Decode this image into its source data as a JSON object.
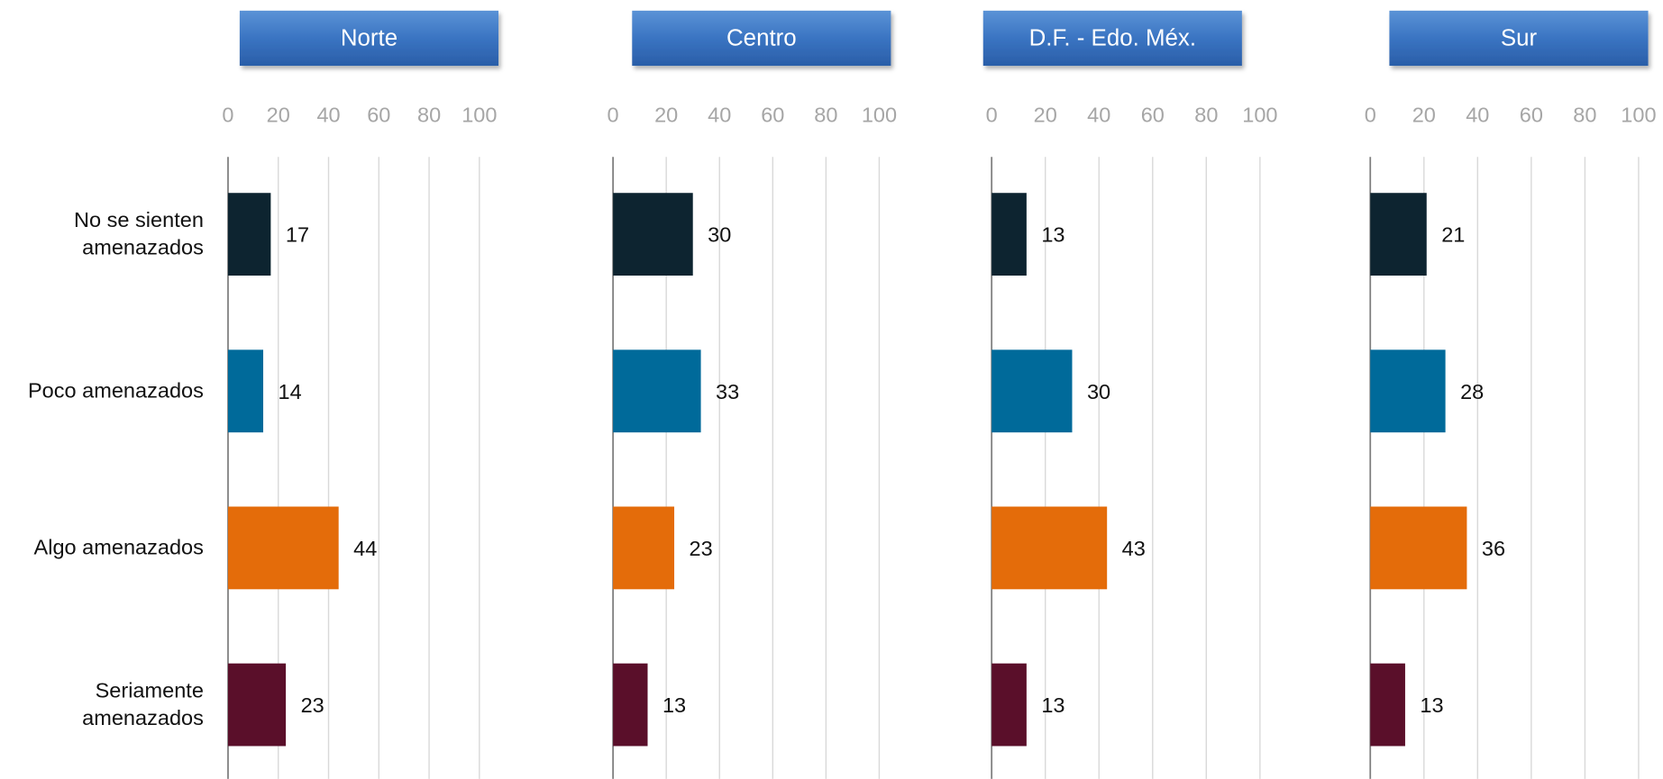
{
  "chart_data": [
    {
      "type": "bar",
      "title": "Norte",
      "categories": [
        "No se sienten amenazados",
        "Poco amenazados",
        "Algo amenazados",
        "Seriamente amenazados"
      ],
      "values": [
        17,
        14,
        44,
        23
      ],
      "colors": [
        "#0d2430",
        "#006a9a",
        "#e46c0a",
        "#5a0f2a"
      ],
      "xlim": [
        0,
        100
      ],
      "xticks": [
        0,
        20,
        40,
        60,
        80,
        100
      ],
      "grid": true
    },
    {
      "type": "bar",
      "title": "Centro",
      "values": [
        30,
        33,
        23,
        13
      ],
      "colors": [
        "#0d2430",
        "#006a9a",
        "#e46c0a",
        "#5a0f2a"
      ],
      "xlim": [
        0,
        100
      ],
      "xticks": [
        0,
        20,
        40,
        60,
        80,
        100
      ],
      "grid": true
    },
    {
      "type": "bar",
      "title": "D.F. - Edo. Méx.",
      "values": [
        13,
        30,
        43,
        13
      ],
      "colors": [
        "#0d2430",
        "#006a9a",
        "#e46c0a",
        "#5a0f2a"
      ],
      "xlim": [
        0,
        100
      ],
      "xticks": [
        0,
        20,
        40,
        60,
        80,
        100
      ],
      "grid": true
    },
    {
      "type": "bar",
      "title": "Sur",
      "values": [
        21,
        28,
        36,
        13
      ],
      "colors": [
        "#0d2430",
        "#006a9a",
        "#e46c0a",
        "#5a0f2a"
      ],
      "xlim": [
        0,
        100
      ],
      "xticks": [
        0,
        20,
        40,
        60,
        80,
        100
      ],
      "grid": true
    }
  ]
}
